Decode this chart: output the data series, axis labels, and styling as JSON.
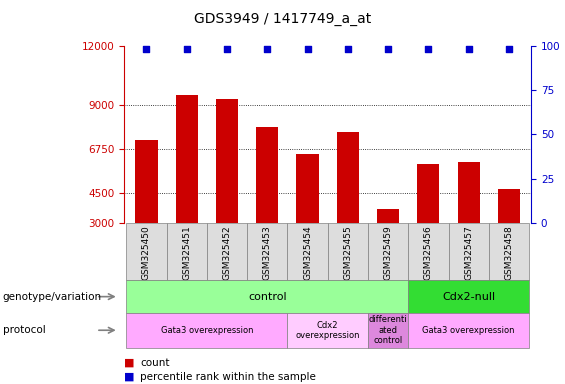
{
  "title": "GDS3949 / 1417749_a_at",
  "samples": [
    "GSM325450",
    "GSM325451",
    "GSM325452",
    "GSM325453",
    "GSM325454",
    "GSM325455",
    "GSM325459",
    "GSM325456",
    "GSM325457",
    "GSM325458"
  ],
  "counts": [
    7200,
    9500,
    9300,
    7900,
    6500,
    7600,
    3700,
    6000,
    6100,
    4700
  ],
  "bar_color": "#cc0000",
  "dot_color": "#0000cc",
  "ylim_left": [
    3000,
    12000
  ],
  "ylim_right": [
    0,
    100
  ],
  "yticks_left": [
    3000,
    4500,
    6750,
    9000,
    12000
  ],
  "yticks_right": [
    0,
    25,
    50,
    75,
    100
  ],
  "genotype_row": {
    "label": "genotype/variation",
    "entries": [
      {
        "text": "control",
        "span": [
          0,
          7
        ],
        "color": "#99ff99"
      },
      {
        "text": "Cdx2-null",
        "span": [
          7,
          10
        ],
        "color": "#33dd33"
      }
    ]
  },
  "protocol_row": {
    "label": "protocol",
    "entries": [
      {
        "text": "Gata3 overexpression",
        "span": [
          0,
          4
        ],
        "color": "#ffaaff"
      },
      {
        "text": "Cdx2\noverexpression",
        "span": [
          4,
          6
        ],
        "color": "#ffccff"
      },
      {
        "text": "differenti\nated\ncontrol",
        "span": [
          6,
          7
        ],
        "color": "#dd88dd"
      },
      {
        "text": "Gata3 overexpression",
        "span": [
          7,
          10
        ],
        "color": "#ffaaff"
      }
    ]
  },
  "legend_items": [
    {
      "color": "#cc0000",
      "label": "count"
    },
    {
      "color": "#0000cc",
      "label": "percentile rank within the sample"
    }
  ]
}
